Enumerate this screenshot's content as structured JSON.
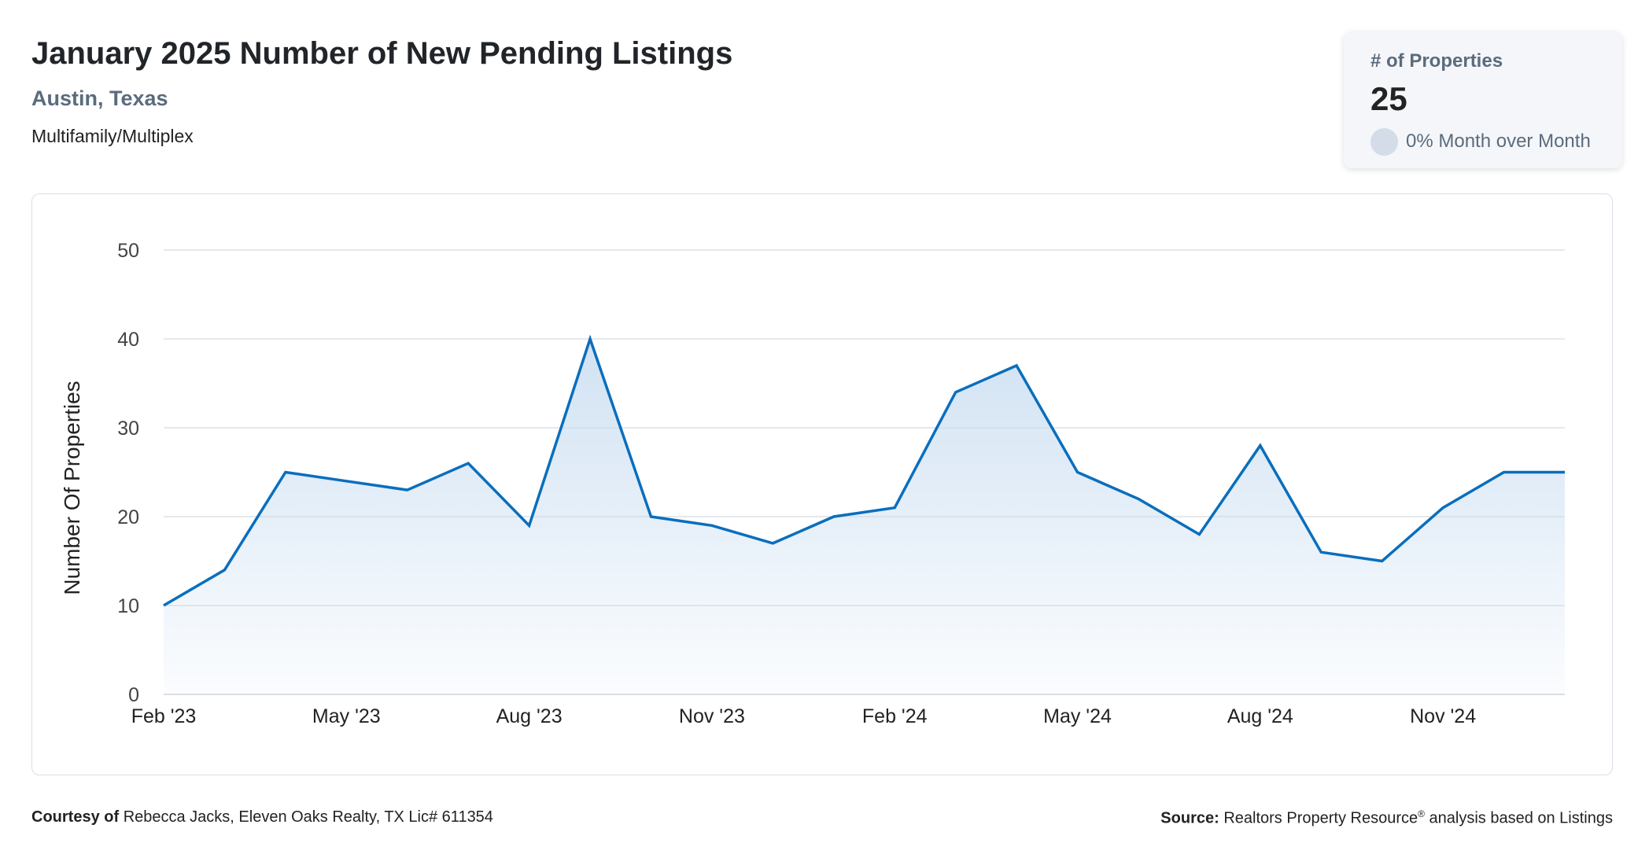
{
  "header": {
    "title": "January 2025 Number of New Pending Listings",
    "location": "Austin, Texas",
    "segment": "Multifamily/Multiplex"
  },
  "stat_card": {
    "label": "# of Properties",
    "value": "25",
    "change": "0% Month over Month",
    "change_icon": "neutral-circle-icon"
  },
  "footer": {
    "courtesy_label": "Courtesy of",
    "courtesy_text": "Rebecca Jacks, Eleven Oaks Realty, TX Lic# 611354",
    "source_label": "Source:",
    "source_name": "Realtors Property Resource",
    "source_mark": "®",
    "source_text": "analysis based on Listings"
  },
  "colors": {
    "line": "#0a6ebd",
    "fill_top": "#c9ddf1",
    "grid": "#dde1e7",
    "subtitle": "#5b6b7d"
  },
  "chart_data": {
    "type": "area",
    "ylabel": "Number Of Properties",
    "xlabel": "",
    "ylim": [
      0,
      50
    ],
    "yticks": [
      0,
      10,
      20,
      30,
      40,
      50
    ],
    "grid": true,
    "x": [
      "Feb '23",
      "Mar '23",
      "Apr '23",
      "May '23",
      "Jun '23",
      "Jul '23",
      "Aug '23",
      "Sep '23",
      "Oct '23",
      "Nov '23",
      "Dec '23",
      "Jan '24",
      "Feb '24",
      "Mar '24",
      "Apr '24",
      "May '24",
      "Jun '24",
      "Jul '24",
      "Aug '24",
      "Sep '24",
      "Oct '24",
      "Nov '24",
      "Dec '24",
      "Jan '25"
    ],
    "xtick_labels": [
      "Feb '23",
      "May '23",
      "Aug '23",
      "Nov '23",
      "Feb '24",
      "May '24",
      "Aug '24",
      "Nov '24"
    ],
    "series": [
      {
        "values": [
          10,
          14,
          25,
          24,
          23,
          26,
          19,
          40,
          20,
          19,
          17,
          20,
          21,
          34,
          37,
          25,
          22,
          18,
          28,
          16,
          15,
          21,
          25,
          25
        ]
      }
    ]
  }
}
